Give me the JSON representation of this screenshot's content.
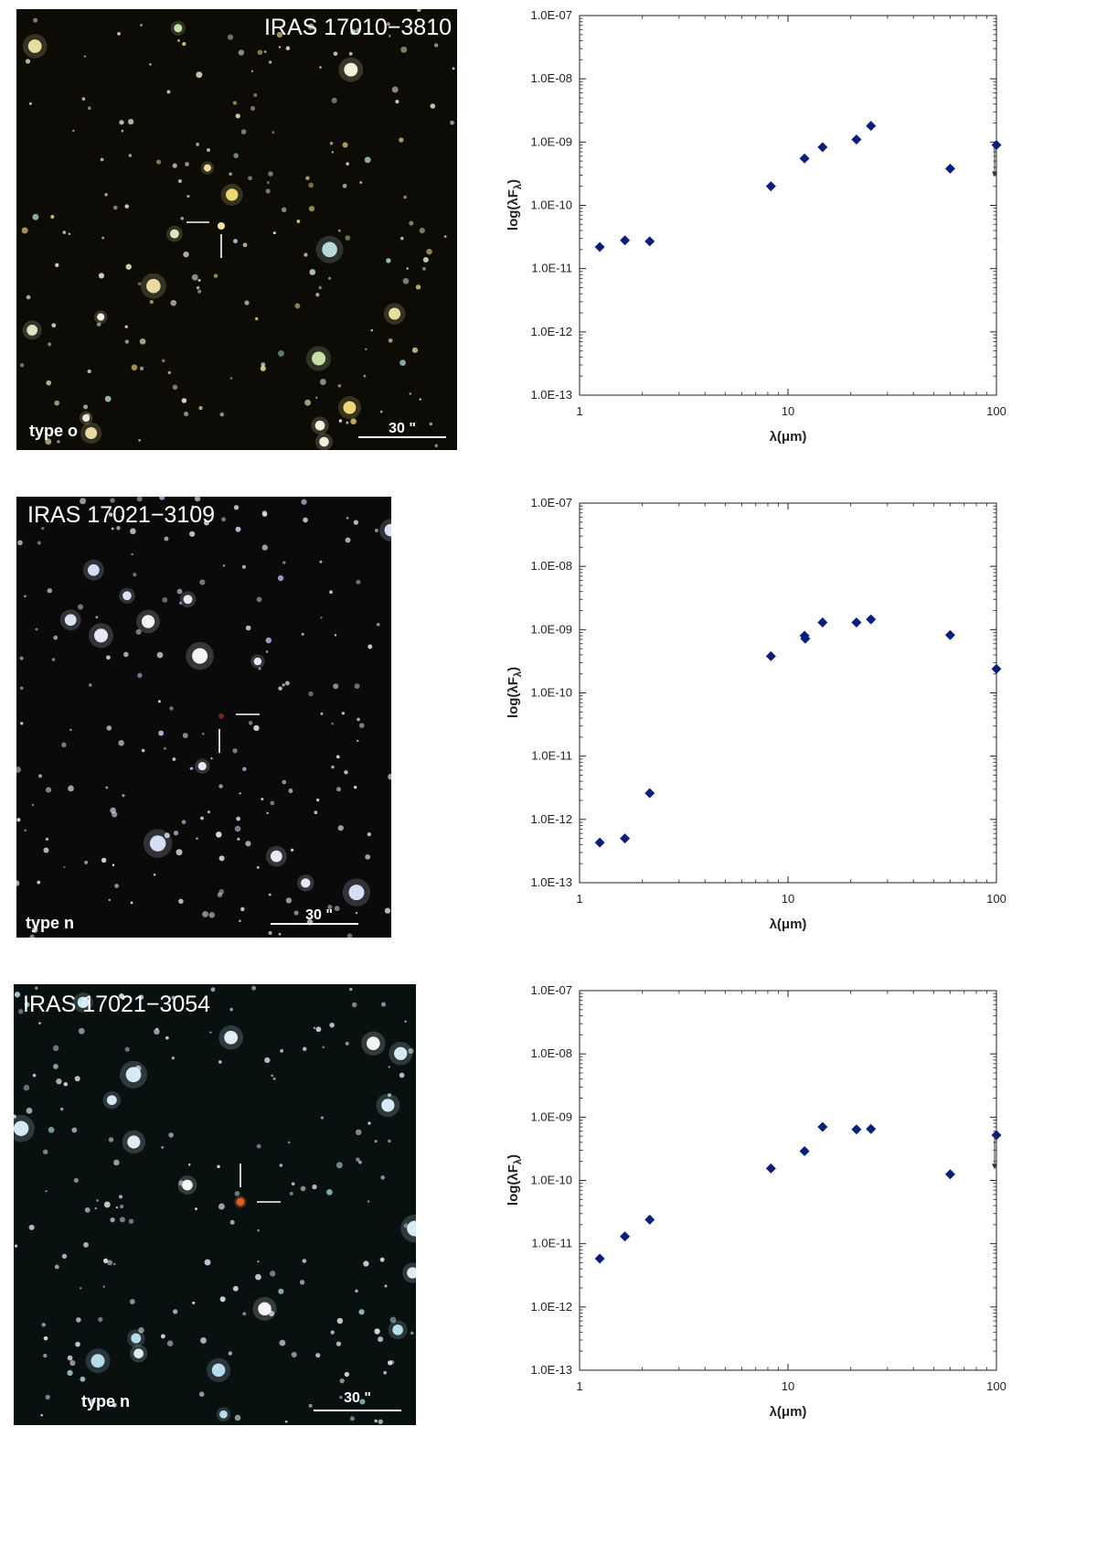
{
  "panels": [
    {
      "image": {
        "title": "IRAS 17010−3810",
        "type_label": "type o",
        "scale_label": "30 \""
      }
    },
    {
      "image": {
        "title": "IRAS 17021−3109",
        "type_label": "type n",
        "scale_label": "30 \""
      }
    },
    {
      "image": {
        "title": "IRAS 17021−3054",
        "type_label": "type n",
        "scale_label": "30 \""
      }
    }
  ],
  "chart_data": [
    {
      "type": "scatter",
      "title": "",
      "xlabel": "λ(μm)",
      "ylabel": "log(λFλ)",
      "xscale": "log",
      "yscale": "log",
      "xlim": [
        1,
        100
      ],
      "ylim": [
        1e-13,
        1e-07
      ],
      "x_ticks": [
        "1",
        "10",
        "100"
      ],
      "y_ticks": [
        "1.0E-13",
        "1.0E-12",
        "1.0E-11",
        "1.0E-10",
        "1.0E-09",
        "1.0E-08",
        "1.0E-07"
      ],
      "marker_color": "#0b1f7a",
      "grid": false,
      "points": [
        {
          "x": 1.25,
          "y": 2.2e-11
        },
        {
          "x": 1.65,
          "y": 2.8e-11
        },
        {
          "x": 2.17,
          "y": 2.7e-11
        },
        {
          "x": 8.28,
          "y": 2e-10
        },
        {
          "x": 12,
          "y": 5.5e-10
        },
        {
          "x": 14.65,
          "y": 8.3e-10
        },
        {
          "x": 21.3,
          "y": 1.1e-09
        },
        {
          "x": 25,
          "y": 1.8e-09
        },
        {
          "x": 60,
          "y": 3.8e-10
        },
        {
          "x": 100,
          "y": 9e-10
        }
      ],
      "upper_limits": [
        {
          "x": 100,
          "y_from": 9e-10,
          "y_to": 3e-10
        }
      ]
    },
    {
      "type": "scatter",
      "title": "",
      "xlabel": "λ(μm)",
      "ylabel": "log(λFλ)",
      "xscale": "log",
      "yscale": "log",
      "xlim": [
        1,
        100
      ],
      "ylim": [
        1e-13,
        1e-07
      ],
      "x_ticks": [
        "1",
        "10",
        "100"
      ],
      "y_ticks": [
        "1.0E-13",
        "1.0E-12",
        "1.0E-11",
        "1.0E-10",
        "1.0E-09",
        "1.0E-08",
        "1.0E-07"
      ],
      "marker_color": "#0b1f7a",
      "grid": false,
      "points": [
        {
          "x": 1.25,
          "y": 4.3e-13
        },
        {
          "x": 1.65,
          "y": 5e-13
        },
        {
          "x": 2.17,
          "y": 2.6e-12
        },
        {
          "x": 8.28,
          "y": 3.8e-10
        },
        {
          "x": 12,
          "y": 8e-10
        },
        {
          "x": 12.1,
          "y": 7.2e-10
        },
        {
          "x": 14.65,
          "y": 1.3e-09
        },
        {
          "x": 21.3,
          "y": 1.3e-09
        },
        {
          "x": 25,
          "y": 1.45e-09
        },
        {
          "x": 60,
          "y": 8.2e-10
        },
        {
          "x": 100,
          "y": 2.4e-10
        }
      ],
      "upper_limits": []
    },
    {
      "type": "scatter",
      "title": "",
      "xlabel": "λ(μm)",
      "ylabel": "log(λFλ)",
      "xscale": "log",
      "yscale": "log",
      "xlim": [
        1,
        100
      ],
      "ylim": [
        1e-13,
        1e-07
      ],
      "x_ticks": [
        "1",
        "10",
        "100"
      ],
      "y_ticks": [
        "1.0E-13",
        "1.0E-12",
        "1.0E-11",
        "1.0E-10",
        "1.0E-09",
        "1.0E-08",
        "1.0E-07"
      ],
      "marker_color": "#0b1f7a",
      "grid": false,
      "points": [
        {
          "x": 1.25,
          "y": 5.8e-12
        },
        {
          "x": 1.65,
          "y": 1.3e-11
        },
        {
          "x": 2.17,
          "y": 2.4e-11
        },
        {
          "x": 8.28,
          "y": 1.55e-10
        },
        {
          "x": 12,
          "y": 2.9e-10
        },
        {
          "x": 14.65,
          "y": 7e-10
        },
        {
          "x": 21.3,
          "y": 6.4e-10
        },
        {
          "x": 25,
          "y": 6.5e-10
        },
        {
          "x": 60,
          "y": 1.25e-10
        },
        {
          "x": 100,
          "y": 5.2e-10
        }
      ],
      "upper_limits": [
        {
          "x": 100,
          "y_from": 5.2e-10,
          "y_to": 1.6e-10
        }
      ]
    }
  ]
}
